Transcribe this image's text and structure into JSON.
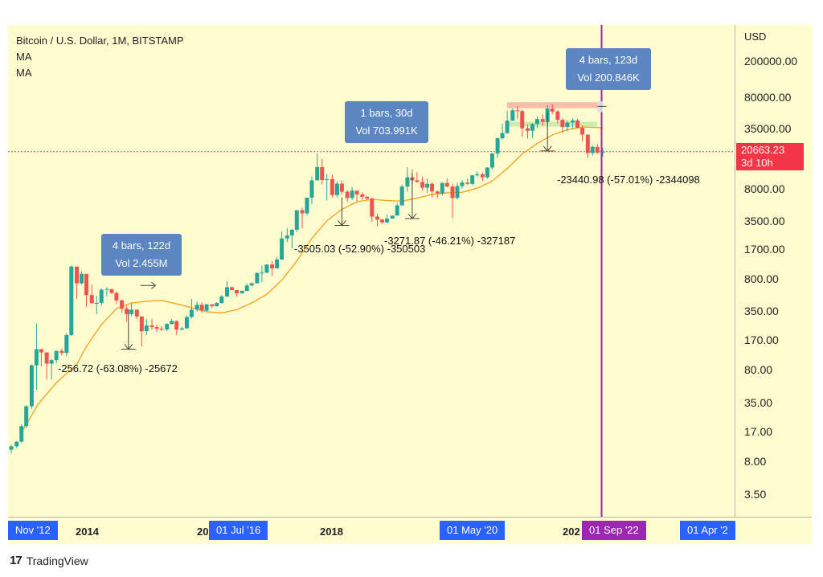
{
  "chart_data": {
    "type": "candlestick",
    "title": "Bitcoin / U.S. Dollar, 1M, BITSTAMP",
    "indicators": [
      "MA",
      "MA"
    ],
    "currency": "USD",
    "y_scale": "log",
    "ylim": [
      2,
      300000
    ],
    "y_ticks": [
      "200000.00",
      "80000.00",
      "35000.00",
      "8000.00",
      "3500.00",
      "1700.00",
      "800.00",
      "350.00",
      "170.00",
      "80.00",
      "35.00",
      "17.00",
      "8.00",
      "3.50"
    ],
    "x_labels": [
      "2014",
      "20",
      "2018",
      "202"
    ],
    "x_badges": [
      {
        "label": "Nov '12",
        "color": "#2962ff"
      },
      {
        "label": "01 Jul '16",
        "color": "#2962ff"
      },
      {
        "label": "01 May '20",
        "color": "#2962ff"
      },
      {
        "label": "01 Sep '22",
        "color": "#9c27b0"
      },
      {
        "label": "01 Apr '2",
        "color": "#2962ff"
      }
    ],
    "last_price": "20663.23",
    "countdown": "3d 10h",
    "colors": {
      "up": "#26a69a",
      "down": "#ef5350",
      "ma": "#f5a623",
      "cursor": "#9c27b0",
      "badge": "#2962ff",
      "price_line": "#ef5350"
    },
    "candles": [
      [
        2012.85,
        11,
        12.5,
        10,
        12
      ],
      [
        2012.94,
        12,
        13.6,
        11.5,
        13.5
      ],
      [
        2013.02,
        13.5,
        21,
        13,
        20
      ],
      [
        2013.1,
        20,
        34,
        19,
        33
      ],
      [
        2013.19,
        33,
        95,
        31,
        93
      ],
      [
        2013.27,
        93,
        266,
        50,
        140
      ],
      [
        2013.35,
        140,
        140,
        90,
        129
      ],
      [
        2013.44,
        129,
        126,
        65,
        97
      ],
      [
        2013.52,
        97,
        110,
        65,
        106
      ],
      [
        2013.6,
        106,
        135,
        98,
        134
      ],
      [
        2013.69,
        134,
        142,
        120,
        127
      ],
      [
        2013.77,
        127,
        210,
        117,
        200
      ],
      [
        2013.85,
        200,
        1160,
        195,
        1130
      ],
      [
        2013.94,
        1130,
        1130,
        500,
        740
      ],
      [
        2014.02,
        740,
        1000,
        720,
        940
      ],
      [
        2014.1,
        940,
        900,
        410,
        550
      ],
      [
        2014.19,
        550,
        710,
        440,
        450
      ],
      [
        2014.27,
        450,
        540,
        340,
        450
      ],
      [
        2014.35,
        450,
        650,
        420,
        630
      ],
      [
        2014.44,
        630,
        670,
        530,
        640
      ],
      [
        2014.52,
        640,
        630,
        560,
        580
      ],
      [
        2014.6,
        580,
        600,
        440,
        480
      ],
      [
        2014.69,
        480,
        490,
        350,
        390
      ],
      [
        2014.77,
        390,
        420,
        280,
        340
      ],
      [
        2014.85,
        340,
        445,
        320,
        380
      ],
      [
        2014.94,
        380,
        380,
        300,
        320
      ],
      [
        2015.02,
        320,
        320,
        150,
        220
      ],
      [
        2015.1,
        220,
        300,
        200,
        255
      ],
      [
        2015.19,
        255,
        300,
        230,
        245
      ],
      [
        2015.27,
        245,
        260,
        215,
        235
      ],
      [
        2015.35,
        235,
        250,
        220,
        230
      ],
      [
        2015.44,
        230,
        270,
        220,
        265
      ],
      [
        2015.52,
        265,
        300,
        260,
        285
      ],
      [
        2015.6,
        285,
        290,
        200,
        230
      ],
      [
        2015.69,
        230,
        245,
        225,
        237
      ],
      [
        2015.77,
        237,
        330,
        235,
        315
      ],
      [
        2015.85,
        315,
        500,
        305,
        380
      ],
      [
        2015.94,
        380,
        465,
        360,
        430
      ],
      [
        2016.02,
        430,
        460,
        350,
        370
      ],
      [
        2016.1,
        370,
        440,
        365,
        435
      ],
      [
        2016.19,
        435,
        435,
        400,
        415
      ],
      [
        2016.27,
        415,
        460,
        410,
        450
      ],
      [
        2016.35,
        450,
        550,
        440,
        530
      ],
      [
        2016.44,
        530,
        780,
        530,
        670
      ],
      [
        2016.52,
        670,
        680,
        620,
        625
      ],
      [
        2016.6,
        625,
        610,
        530,
        575
      ],
      [
        2016.69,
        575,
        620,
        570,
        610
      ],
      [
        2016.77,
        610,
        740,
        605,
        700
      ],
      [
        2016.85,
        700,
        760,
        690,
        740
      ],
      [
        2016.94,
        740,
        980,
        740,
        960
      ],
      [
        2017.02,
        960,
        1160,
        760,
        970
      ],
      [
        2017.1,
        970,
        1200,
        950,
        1190
      ],
      [
        2017.19,
        1190,
        1290,
        890,
        1080
      ],
      [
        2017.27,
        1080,
        1450,
        1080,
        1350
      ],
      [
        2017.35,
        1350,
        2760,
        1350,
        2300
      ],
      [
        2017.44,
        2300,
        3000,
        2100,
        2480
      ],
      [
        2017.52,
        2480,
        2900,
        1800,
        2870
      ],
      [
        2017.6,
        2870,
        4700,
        2700,
        4700
      ],
      [
        2017.69,
        4700,
        5000,
        2970,
        4340
      ],
      [
        2017.77,
        4340,
        6470,
        4150,
        6450
      ],
      [
        2017.85,
        6450,
        11000,
        5500,
        10000
      ],
      [
        2017.94,
        10000,
        19700,
        10000,
        14000
      ],
      [
        2018.02,
        14000,
        17200,
        9000,
        10100
      ],
      [
        2018.1,
        10100,
        11800,
        6000,
        10300
      ],
      [
        2018.19,
        10300,
        11600,
        6500,
        6900
      ],
      [
        2018.27,
        6900,
        9700,
        6500,
        9200
      ],
      [
        2018.35,
        9200,
        10000,
        7000,
        7500
      ],
      [
        2018.44,
        7500,
        7800,
        5800,
        6400
      ],
      [
        2018.52,
        6400,
        8500,
        6100,
        7700
      ],
      [
        2018.6,
        7700,
        7700,
        5900,
        7000
      ],
      [
        2018.69,
        7000,
        7400,
        6100,
        6600
      ],
      [
        2018.77,
        6600,
        6700,
        6100,
        6300
      ],
      [
        2018.85,
        6300,
        6500,
        3500,
        4000
      ],
      [
        2018.94,
        4000,
        4300,
        3150,
        3700
      ],
      [
        2019.02,
        3700,
        3800,
        3350,
        3450
      ],
      [
        2019.1,
        3450,
        4200,
        3400,
        3800
      ],
      [
        2019.19,
        3800,
        4100,
        3800,
        4100
      ],
      [
        2019.27,
        4100,
        5600,
        4100,
        5300
      ],
      [
        2019.35,
        5300,
        9000,
        5300,
        8550
      ],
      [
        2019.44,
        8550,
        13900,
        7500,
        10800
      ],
      [
        2019.52,
        10800,
        13200,
        9000,
        10000
      ],
      [
        2019.6,
        10000,
        12300,
        9400,
        9600
      ],
      [
        2019.69,
        9600,
        10900,
        7700,
        8300
      ],
      [
        2019.77,
        8300,
        10400,
        7300,
        9150
      ],
      [
        2019.85,
        9150,
        9500,
        6500,
        7550
      ],
      [
        2019.94,
        7550,
        7700,
        6400,
        7200
      ],
      [
        2020.02,
        7200,
        9600,
        6850,
        9350
      ],
      [
        2020.1,
        9350,
        10500,
        8400,
        8550
      ],
      [
        2020.19,
        8550,
        9200,
        3850,
        6400
      ],
      [
        2020.27,
        6400,
        9400,
        6150,
        8650
      ],
      [
        2020.35,
        8650,
        10100,
        8100,
        9450
      ],
      [
        2020.44,
        9450,
        10400,
        8900,
        9150
      ],
      [
        2020.52,
        9150,
        11450,
        8900,
        11350
      ],
      [
        2020.6,
        11350,
        12500,
        11000,
        11650
      ],
      [
        2020.69,
        11650,
        12100,
        9850,
        10800
      ],
      [
        2020.77,
        10800,
        14000,
        10400,
        13800
      ],
      [
        2020.85,
        13800,
        19900,
        13200,
        19700
      ],
      [
        2020.94,
        19700,
        29300,
        17600,
        29000
      ],
      [
        2021.02,
        29000,
        41900,
        28000,
        33100
      ],
      [
        2021.1,
        33100,
        58300,
        32200,
        45200
      ],
      [
        2021.19,
        45200,
        61800,
        45000,
        58800
      ],
      [
        2021.27,
        58800,
        64900,
        47000,
        57700
      ],
      [
        2021.35,
        57700,
        59500,
        30000,
        37300
      ],
      [
        2021.44,
        37300,
        41300,
        28800,
        35000
      ],
      [
        2021.52,
        35000,
        42500,
        29300,
        41500
      ],
      [
        2021.6,
        41500,
        50500,
        37600,
        47100
      ],
      [
        2021.69,
        47100,
        52900,
        39600,
        43800
      ],
      [
        2021.77,
        43800,
        67000,
        43300,
        61300
      ],
      [
        2021.85,
        61300,
        69000,
        53000,
        57000
      ],
      [
        2021.94,
        57000,
        59000,
        42000,
        46200
      ],
      [
        2022.02,
        46200,
        48000,
        33000,
        38500
      ],
      [
        2022.1,
        38500,
        45800,
        34300,
        43200
      ],
      [
        2022.19,
        43200,
        48200,
        37200,
        45500
      ],
      [
        2022.27,
        45500,
        47400,
        37700,
        37700
      ],
      [
        2022.35,
        37700,
        40000,
        26700,
        31800
      ],
      [
        2022.44,
        31800,
        31900,
        17600,
        19900
      ],
      [
        2022.52,
        19900,
        24200,
        18800,
        23300
      ],
      [
        2022.6,
        23300,
        25200,
        19600,
        20100
      ],
      [
        2022.69,
        20100,
        22700,
        18200,
        20663
      ]
    ],
    "ma_series": [
      [
        2013.02,
        17
      ],
      [
        2013.3,
        35
      ],
      [
        2013.6,
        60
      ],
      [
        2013.94,
        95
      ],
      [
        2014.1,
        150
      ],
      [
        2014.35,
        260
      ],
      [
        2014.6,
        390
      ],
      [
        2014.85,
        450
      ],
      [
        2015.1,
        470
      ],
      [
        2015.35,
        480
      ],
      [
        2015.6,
        440
      ],
      [
        2015.85,
        400
      ],
      [
        2016.1,
        360
      ],
      [
        2016.35,
        350
      ],
      [
        2016.6,
        380
      ],
      [
        2016.85,
        450
      ],
      [
        2017.1,
        560
      ],
      [
        2017.35,
        800
      ],
      [
        2017.6,
        1300
      ],
      [
        2017.85,
        2300
      ],
      [
        2018.1,
        3600
      ],
      [
        2018.35,
        4800
      ],
      [
        2018.6,
        5800
      ],
      [
        2018.85,
        6200
      ],
      [
        2019.1,
        6000
      ],
      [
        2019.35,
        5900
      ],
      [
        2019.6,
        6400
      ],
      [
        2019.85,
        7000
      ],
      [
        2020.1,
        7300
      ],
      [
        2020.35,
        7400
      ],
      [
        2020.6,
        8200
      ],
      [
        2020.85,
        9800
      ],
      [
        2021.1,
        13500
      ],
      [
        2021.35,
        19500
      ],
      [
        2021.6,
        25500
      ],
      [
        2021.85,
        31500
      ],
      [
        2022.1,
        36000
      ],
      [
        2022.35,
        38500
      ],
      [
        2022.6,
        38000
      ],
      [
        2022.69,
        37700
      ]
    ],
    "price_line": 20663,
    "cursor_x": 2022.67,
    "measure_labels": [
      "-256.72 (-63.08%) -25672",
      "-3505.03 (-52.90%) -350503",
      "-3271.87 (-46.21%) -327187",
      "-23440.98 (-57.01%) -2344098"
    ],
    "info_boxes": [
      {
        "line1": "4 bars, 122d",
        "line2": "Vol 2.455M"
      },
      {
        "line1": "1 bars, 30d",
        "line2": "Vol 703.991K"
      },
      {
        "line1": "4 bars, 123d",
        "line2": "Vol 200.846K"
      }
    ],
    "support_band_top": [
      62000,
      72000
    ],
    "support_band_bottom": [
      39000,
      44000
    ]
  },
  "brand": {
    "name": "TradingView",
    "mark": "17"
  }
}
